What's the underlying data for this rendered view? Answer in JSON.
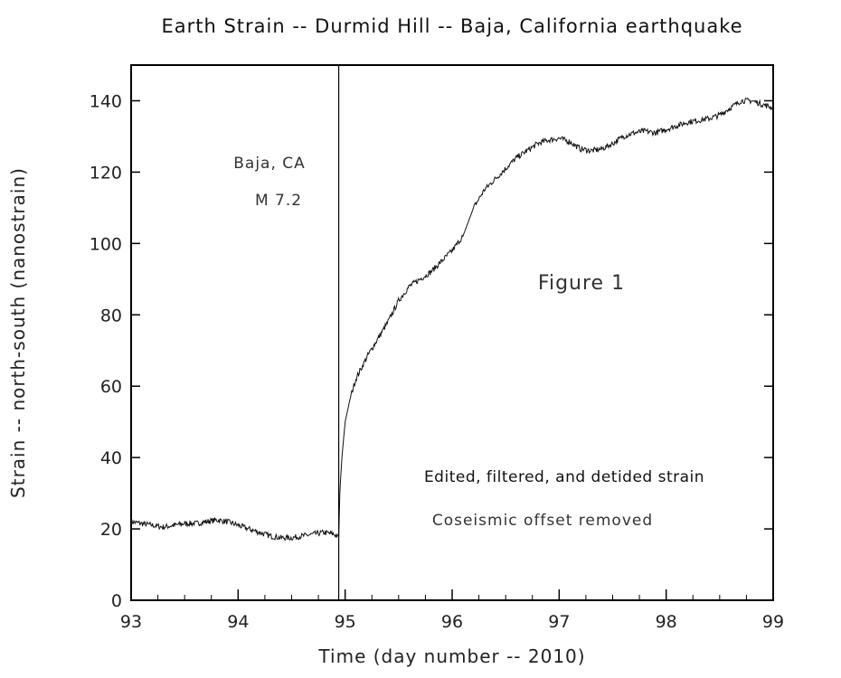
{
  "chart_data": {
    "type": "line",
    "title": "Earth Strain  --  Durmid Hill  --  Baja, California earthquake",
    "xlabel": "Time  (day number  --  2010)",
    "ylabel": "Strain  --  north-south  (nanostrain)",
    "xlim": [
      93,
      99
    ],
    "ylim": [
      0,
      150
    ],
    "xticks": [
      93,
      94,
      95,
      96,
      97,
      98,
      99
    ],
    "yticks": [
      0,
      20,
      40,
      60,
      80,
      100,
      120,
      140
    ],
    "grid": false,
    "legend": "none",
    "event": {
      "x": 94.94,
      "label_line1": "Baja, CA",
      "label_line2": "M  7.2"
    },
    "annotations": {
      "figure": "Figure  1",
      "processing": "Edited, filtered, and detided strain",
      "offset": "Coseismic  offset  removed"
    },
    "series": [
      {
        "color": "#111111",
        "noise": 0.8,
        "x": [
          93.0,
          93.1,
          93.2,
          93.3,
          93.4,
          93.5,
          93.6,
          93.7,
          93.8,
          93.9,
          94.0,
          94.1,
          94.2,
          94.3,
          94.4,
          94.5,
          94.6,
          94.7,
          94.8,
          94.9,
          94.94,
          94.95,
          94.97,
          95.0,
          95.05,
          95.1,
          95.2,
          95.3,
          95.4,
          95.5,
          95.6,
          95.7,
          95.8,
          95.9,
          96.0,
          96.1,
          96.2,
          96.3,
          96.4,
          96.5,
          96.6,
          96.7,
          96.8,
          96.9,
          97.0,
          97.1,
          97.2,
          97.3,
          97.4,
          97.5,
          97.6,
          97.7,
          97.8,
          97.9,
          98.0,
          98.1,
          98.2,
          98.3,
          98.4,
          98.5,
          98.6,
          98.7,
          98.8,
          98.9,
          99.0
        ],
        "y": [
          22,
          21.5,
          21,
          20.5,
          21,
          21.5,
          21.5,
          22,
          22.5,
          22,
          21,
          20,
          19,
          18,
          17.5,
          17.5,
          18,
          18.5,
          19,
          18.5,
          17.5,
          30,
          40,
          50,
          57,
          62,
          68,
          73,
          78,
          84,
          88,
          90,
          92,
          95,
          98,
          102,
          110,
          115,
          118,
          121,
          124,
          126,
          128,
          129,
          129.5,
          128.5,
          126.5,
          126,
          126.5,
          128,
          130,
          131,
          131.5,
          131,
          132,
          133,
          134,
          134.5,
          135,
          136,
          138,
          140,
          140,
          139,
          138
        ]
      }
    ]
  }
}
